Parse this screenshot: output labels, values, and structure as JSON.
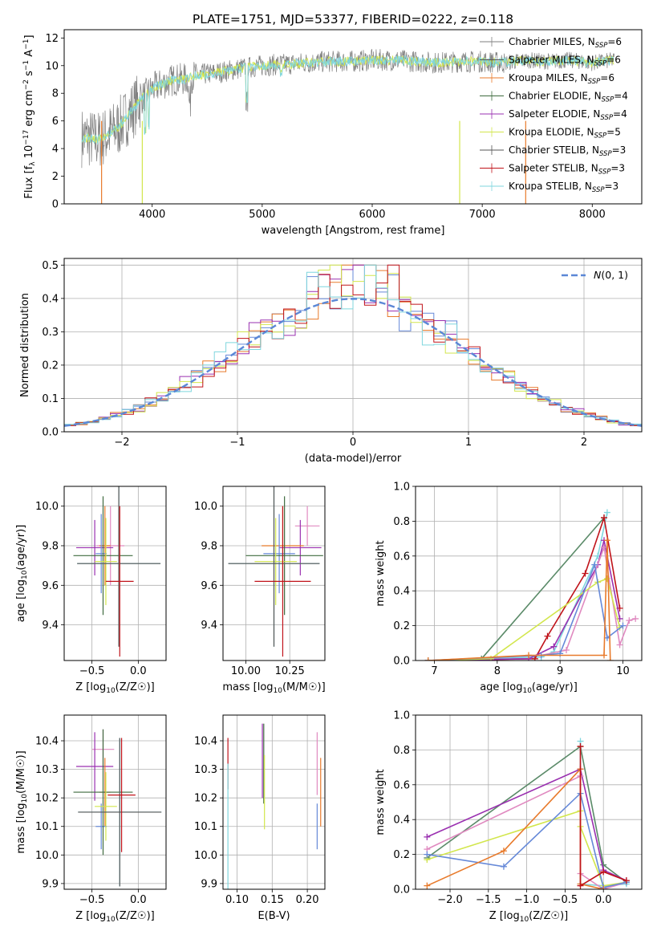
{
  "figure": {
    "title": "PLATE=1751, MJD=53377, FIBERID=0222, z=0.118"
  },
  "palette": {
    "grey": "#7f7f7f",
    "blue": "#6689d8",
    "orange": "#e87a2b",
    "green": "#5a8a68",
    "purple": "#9a30b0",
    "yellow": "#d2e64c",
    "pink": "#e08ac0",
    "red": "#c0131a",
    "cyan": "#7fd6de",
    "darkgreen": "#3f6b3f",
    "darkgrey": "#555555",
    "refline": "#5b87d6"
  },
  "chart_data": [
    {
      "id": "spectrum",
      "type": "line",
      "xlabel": "wavelength [Angstrom, rest frame]",
      "ylabel": "Flux [f_λ 10^-17 erg cm^-2 s^-1 A^-1]",
      "xlim": [
        3200,
        8450
      ],
      "ylim": [
        0,
        12.6
      ],
      "xticks": [
        4000,
        5000,
        6000,
        7000,
        8000
      ],
      "yticks": [
        0,
        2,
        4,
        6,
        8,
        10,
        12
      ],
      "grid": false,
      "legend_position": "top-right",
      "continuum_x": [
        3400,
        3500,
        3600,
        3700,
        3800,
        3900,
        4000,
        4100,
        4200,
        4300,
        4400,
        4500,
        4600,
        4800,
        5000,
        5200,
        5400,
        5600,
        5800,
        6000,
        6200,
        6400,
        6600,
        6800,
        7000,
        7200,
        7400,
        7600,
        7800,
        8000,
        8200
      ],
      "continuum_y": [
        4.8,
        4.6,
        5.0,
        5.6,
        6.6,
        7.6,
        8.3,
        8.7,
        9.0,
        9.0,
        9.3,
        9.4,
        9.5,
        9.8,
        10.0,
        10.1,
        10.2,
        10.3,
        10.3,
        10.4,
        10.4,
        10.3,
        10.2,
        10.3,
        10.3,
        10.2,
        10.4,
        10.3,
        10.4,
        10.2,
        10.4
      ],
      "series": [
        {
          "name": "Chabrier MILES, N_SSP=6",
          "color_key": "grey"
        },
        {
          "name": "Salpeter MILES, N_SSP=6",
          "color_key": "darkgrey"
        },
        {
          "name": "Kroupa MILES, N_SSP=6",
          "color_key": "orange"
        },
        {
          "name": "Chabrier ELODIE, N_SSP=4",
          "color_key": "darkgreen"
        },
        {
          "name": "Salpeter ELODIE, N_SSP=4",
          "color_key": "purple"
        },
        {
          "name": "Kroupa ELODIE, N_SSP=5",
          "color_key": "yellow"
        },
        {
          "name": "Chabrier STELIB, N_SSP=3",
          "color_key": "darkgrey"
        },
        {
          "name": "Salpeter STELIB, N_SSP=3",
          "color_key": "red"
        },
        {
          "name": "Kroupa STELIB, N_SSP=3",
          "color_key": "cyan"
        }
      ]
    },
    {
      "id": "residual_hist",
      "type": "step-histogram",
      "xlabel": "(data-model)/error",
      "ylabel": "Normed distribution",
      "xlim": [
        -2.5,
        2.5
      ],
      "ylim": [
        0,
        0.52
      ],
      "xticks": [
        -2,
        -1,
        0,
        1,
        2
      ],
      "yticks": [
        0.0,
        0.1,
        0.2,
        0.3,
        0.4,
        0.5
      ],
      "grid": true,
      "legend_position": "top-right",
      "reference_curve": {
        "name": "N(0,1)",
        "mean": 0,
        "sigma": 1
      },
      "bin_width": 0.1,
      "series": [
        {
          "color_key": "blue",
          "phase": 0.0
        },
        {
          "color_key": "orange",
          "phase": 1.1
        },
        {
          "color_key": "purple",
          "phase": 2.2
        },
        {
          "color_key": "yellow",
          "phase": 3.3
        },
        {
          "color_key": "red",
          "phase": 4.4
        },
        {
          "color_key": "cyan",
          "phase": 5.5
        }
      ]
    },
    {
      "id": "age_vs_Z",
      "type": "errorbar",
      "xlabel": "Z [log10(Z/Z☉)]",
      "ylabel": "age [log10(age/yr)]",
      "xlim": [
        -0.8,
        0.3
      ],
      "ylim": [
        9.22,
        10.1
      ],
      "xticks": [
        -0.5,
        0.0
      ],
      "yticks": [
        9.4,
        9.6,
        9.8,
        10.0
      ],
      "grid": true,
      "points": [
        {
          "x": -0.3,
          "y": 9.8,
          "xerr": 0.15,
          "yerr": 0.2,
          "color_key": "pink"
        },
        {
          "x": -0.47,
          "y": 9.79,
          "xerr": 0.2,
          "yerr": 0.14,
          "color_key": "purple"
        },
        {
          "x": -0.36,
          "y": 9.8,
          "xerr": 0.06,
          "yerr": 0.2,
          "color_key": "orange"
        },
        {
          "x": -0.4,
          "y": 9.76,
          "xerr": 0.06,
          "yerr": 0.2,
          "color_key": "blue"
        },
        {
          "x": -0.38,
          "y": 9.75,
          "xerr": 0.32,
          "yerr": 0.3,
          "color_key": "darkgreen"
        },
        {
          "x": -0.35,
          "y": 9.72,
          "xerr": 0.12,
          "yerr": 0.22,
          "color_key": "yellow"
        },
        {
          "x": -0.21,
          "y": 9.71,
          "xerr": 0.45,
          "yerr": 0.42,
          "color_key": "cyan"
        },
        {
          "x": -0.21,
          "y": 9.71,
          "xerr": 0.45,
          "yerr": 0.42,
          "color_key": "darkgrey"
        },
        {
          "x": -0.2,
          "y": 9.62,
          "xerr": 0.15,
          "yerr": 0.38,
          "color_key": "red"
        }
      ]
    },
    {
      "id": "age_vs_mass",
      "type": "errorbar",
      "xlabel": "mass [log10(M/M☉)]",
      "ylabel": "",
      "xlim": [
        9.87,
        10.45
      ],
      "ylim": [
        9.22,
        10.1
      ],
      "xticks": [
        10.0,
        10.25
      ],
      "yticks": [
        9.4,
        9.6,
        9.8,
        10.0
      ],
      "grid": true,
      "points": [
        {
          "x": 10.35,
          "y": 9.9,
          "xerr": 0.07,
          "yerr": 0.1,
          "color_key": "pink"
        },
        {
          "x": 10.31,
          "y": 9.79,
          "xerr": 0.12,
          "yerr": 0.14,
          "color_key": "purple"
        },
        {
          "x": 10.21,
          "y": 9.8,
          "xerr": 0.12,
          "yerr": 0.2,
          "color_key": "orange"
        },
        {
          "x": 10.19,
          "y": 9.76,
          "xerr": 0.09,
          "yerr": 0.2,
          "color_key": "blue"
        },
        {
          "x": 10.22,
          "y": 9.75,
          "xerr": 0.22,
          "yerr": 0.3,
          "color_key": "darkgreen"
        },
        {
          "x": 10.17,
          "y": 9.72,
          "xerr": 0.12,
          "yerr": 0.22,
          "color_key": "yellow"
        },
        {
          "x": 10.16,
          "y": 9.71,
          "xerr": 0.26,
          "yerr": 0.42,
          "color_key": "cyan"
        },
        {
          "x": 10.16,
          "y": 9.71,
          "xerr": 0.26,
          "yerr": 0.42,
          "color_key": "darkgrey"
        },
        {
          "x": 10.21,
          "y": 9.62,
          "xerr": 0.16,
          "yerr": 0.38,
          "color_key": "red"
        }
      ]
    },
    {
      "id": "weight_vs_age",
      "type": "line",
      "xlabel": "age [log10(age/yr)]",
      "ylabel": "mass weight",
      "xlim": [
        6.7,
        10.3
      ],
      "ylim": [
        0,
        1.0
      ],
      "xticks": [
        7,
        8,
        9,
        10
      ],
      "yticks": [
        0.0,
        0.2,
        0.4,
        0.6,
        0.8,
        1.0
      ],
      "grid": true,
      "series": [
        {
          "color_key": "green",
          "x": [
            6.9,
            7.75,
            9.7
          ],
          "y": [
            0.0,
            0.01,
            0.82
          ]
        },
        {
          "color_key": "cyan",
          "x": [
            6.9,
            8.7,
            8.9,
            9.6,
            9.75
          ],
          "y": [
            0.0,
            0.02,
            0.05,
            0.6,
            0.85
          ]
        },
        {
          "color_key": "red",
          "x": [
            6.9,
            8.6,
            8.8,
            9.4,
            9.7,
            9.95
          ],
          "y": [
            0.0,
            0.01,
            0.14,
            0.5,
            0.82,
            0.3
          ]
        },
        {
          "color_key": "purple",
          "x": [
            6.9,
            8.5,
            8.9,
            9.6,
            9.7,
            9.95
          ],
          "y": [
            0.0,
            0.01,
            0.08,
            0.55,
            0.69,
            0.24
          ]
        },
        {
          "color_key": "pink",
          "x": [
            6.9,
            8.7,
            9.1,
            9.7,
            9.95,
            10.1,
            10.2
          ],
          "y": [
            0.0,
            0.03,
            0.06,
            0.65,
            0.09,
            0.23,
            0.24
          ]
        },
        {
          "color_key": "yellow",
          "x": [
            6.9,
            7.9,
            9.6,
            9.75,
            9.95
          ],
          "y": [
            0.0,
            0.01,
            0.45,
            0.47,
            0.19
          ]
        },
        {
          "color_key": "blue",
          "x": [
            6.9,
            8.7,
            9.0,
            9.55,
            9.75,
            10.0
          ],
          "y": [
            0.0,
            0.03,
            0.04,
            0.55,
            0.13,
            0.2
          ]
        },
        {
          "color_key": "orange",
          "x": [
            6.9,
            8.5,
            9.7,
            9.75,
            9.8
          ],
          "y": [
            0.0,
            0.03,
            0.03,
            0.69,
            0.0
          ]
        }
      ]
    },
    {
      "id": "mass_vs_Z",
      "type": "errorbar",
      "xlabel": "Z [log10(Z/Z☉)]",
      "ylabel": "mass [log10(M/M☉)]",
      "xlim": [
        -0.8,
        0.3
      ],
      "ylim": [
        9.88,
        10.49
      ],
      "xticks": [
        -0.5,
        0.0
      ],
      "yticks": [
        9.9,
        10.0,
        10.1,
        10.2,
        10.3,
        10.4
      ],
      "grid": true,
      "points": [
        {
          "x": -0.38,
          "y": 10.37,
          "xerr": 0.12,
          "yerr": 0.07,
          "color_key": "pink"
        },
        {
          "x": -0.47,
          "y": 10.31,
          "xerr": 0.2,
          "yerr": 0.12,
          "color_key": "purple"
        },
        {
          "x": -0.36,
          "y": 10.22,
          "xerr": 0.06,
          "yerr": 0.12,
          "color_key": "orange"
        },
        {
          "x": -0.4,
          "y": 10.1,
          "xerr": 0.06,
          "yerr": 0.08,
          "color_key": "blue"
        },
        {
          "x": -0.38,
          "y": 10.22,
          "xerr": 0.32,
          "yerr": 0.22,
          "color_key": "darkgreen"
        },
        {
          "x": -0.35,
          "y": 10.17,
          "xerr": 0.12,
          "yerr": 0.12,
          "color_key": "yellow"
        },
        {
          "x": -0.2,
          "y": 10.15,
          "xerr": 0.45,
          "yerr": 0.26,
          "color_key": "cyan"
        },
        {
          "x": -0.2,
          "y": 10.15,
          "xerr": 0.45,
          "yerr": 0.26,
          "color_key": "darkgrey"
        },
        {
          "x": -0.18,
          "y": 10.21,
          "xerr": 0.15,
          "yerr": 0.2,
          "color_key": "red"
        }
      ]
    },
    {
      "id": "mass_vs_ebv",
      "type": "errorbar",
      "xlabel": "E(B-V)",
      "ylabel": "",
      "xlim": [
        0.08,
        0.225
      ],
      "ylim": [
        9.88,
        10.49
      ],
      "xticks": [
        0.1,
        0.15,
        0.2
      ],
      "yticks": [
        9.9,
        10.0,
        10.1,
        10.2,
        10.3,
        10.4
      ],
      "grid": true,
      "points": [
        {
          "x": 0.087,
          "y": 10.32,
          "xerr": 0,
          "yerr": 0.09,
          "color_key": "red"
        },
        {
          "x": 0.087,
          "y": 10.1,
          "xerr": 0,
          "yerr": 0.22,
          "color_key": "cyan"
        },
        {
          "x": 0.136,
          "y": 10.33,
          "xerr": 0,
          "yerr": 0.13,
          "color_key": "purple"
        },
        {
          "x": 0.138,
          "y": 10.32,
          "xerr": 0,
          "yerr": 0.14,
          "color_key": "darkgreen"
        },
        {
          "x": 0.139,
          "y": 10.22,
          "xerr": 0,
          "yerr": 0.13,
          "color_key": "yellow"
        },
        {
          "x": 0.214,
          "y": 10.32,
          "xerr": 0,
          "yerr": 0.11,
          "color_key": "pink"
        },
        {
          "x": 0.214,
          "y": 10.1,
          "xerr": 0,
          "yerr": 0.08,
          "color_key": "blue"
        },
        {
          "x": 0.219,
          "y": 10.22,
          "xerr": 0,
          "yerr": 0.12,
          "color_key": "orange"
        }
      ]
    },
    {
      "id": "weight_vs_Z",
      "type": "line",
      "xlabel": "Z [log10(Z/Z☉)]",
      "ylabel": "mass weight",
      "xlim": [
        -2.45,
        0.5
      ],
      "ylim": [
        0,
        1.0
      ],
      "xticks": [
        -2.0,
        -1.5,
        -1.0,
        -0.5,
        0.0
      ],
      "yticks": [
        0.0,
        0.2,
        0.4,
        0.6,
        0.8,
        1.0
      ],
      "grid": true,
      "series": [
        {
          "color_key": "green",
          "x": [
            -2.3,
            -0.3,
            0.0,
            0.3
          ],
          "y": [
            0.18,
            0.82,
            0.14,
            0.04
          ]
        },
        {
          "color_key": "cyan",
          "x": [
            -0.3,
            -0.3,
            0.0,
            0.3
          ],
          "y": [
            0.85,
            0.03,
            0.02,
            0.03
          ]
        },
        {
          "color_key": "purple",
          "x": [
            -2.3,
            -0.3,
            0.0,
            0.3
          ],
          "y": [
            0.3,
            0.69,
            0.11,
            0.05
          ]
        },
        {
          "color_key": "pink",
          "x": [
            -2.3,
            -0.3,
            -0.3,
            0.0,
            0.3
          ],
          "y": [
            0.23,
            0.65,
            0.09,
            0.0,
            0.04
          ]
        },
        {
          "color_key": "yellow",
          "x": [
            -2.3,
            -0.3,
            -0.3,
            0.0,
            0.3
          ],
          "y": [
            0.17,
            0.45,
            0.36,
            0.02,
            0.04
          ]
        },
        {
          "color_key": "blue",
          "x": [
            -2.3,
            -1.3,
            -0.3,
            0.0,
            0.3
          ],
          "y": [
            0.2,
            0.13,
            0.55,
            0.01,
            0.04
          ]
        },
        {
          "color_key": "orange",
          "x": [
            -2.3,
            -1.3,
            -0.3,
            -0.3,
            0.0
          ],
          "y": [
            0.02,
            0.22,
            0.69,
            0.03,
            0.0
          ]
        },
        {
          "color_key": "red",
          "x": [
            -0.3,
            -0.3,
            0.0,
            0.3
          ],
          "y": [
            0.82,
            0.02,
            0.1,
            0.05
          ]
        }
      ]
    }
  ]
}
